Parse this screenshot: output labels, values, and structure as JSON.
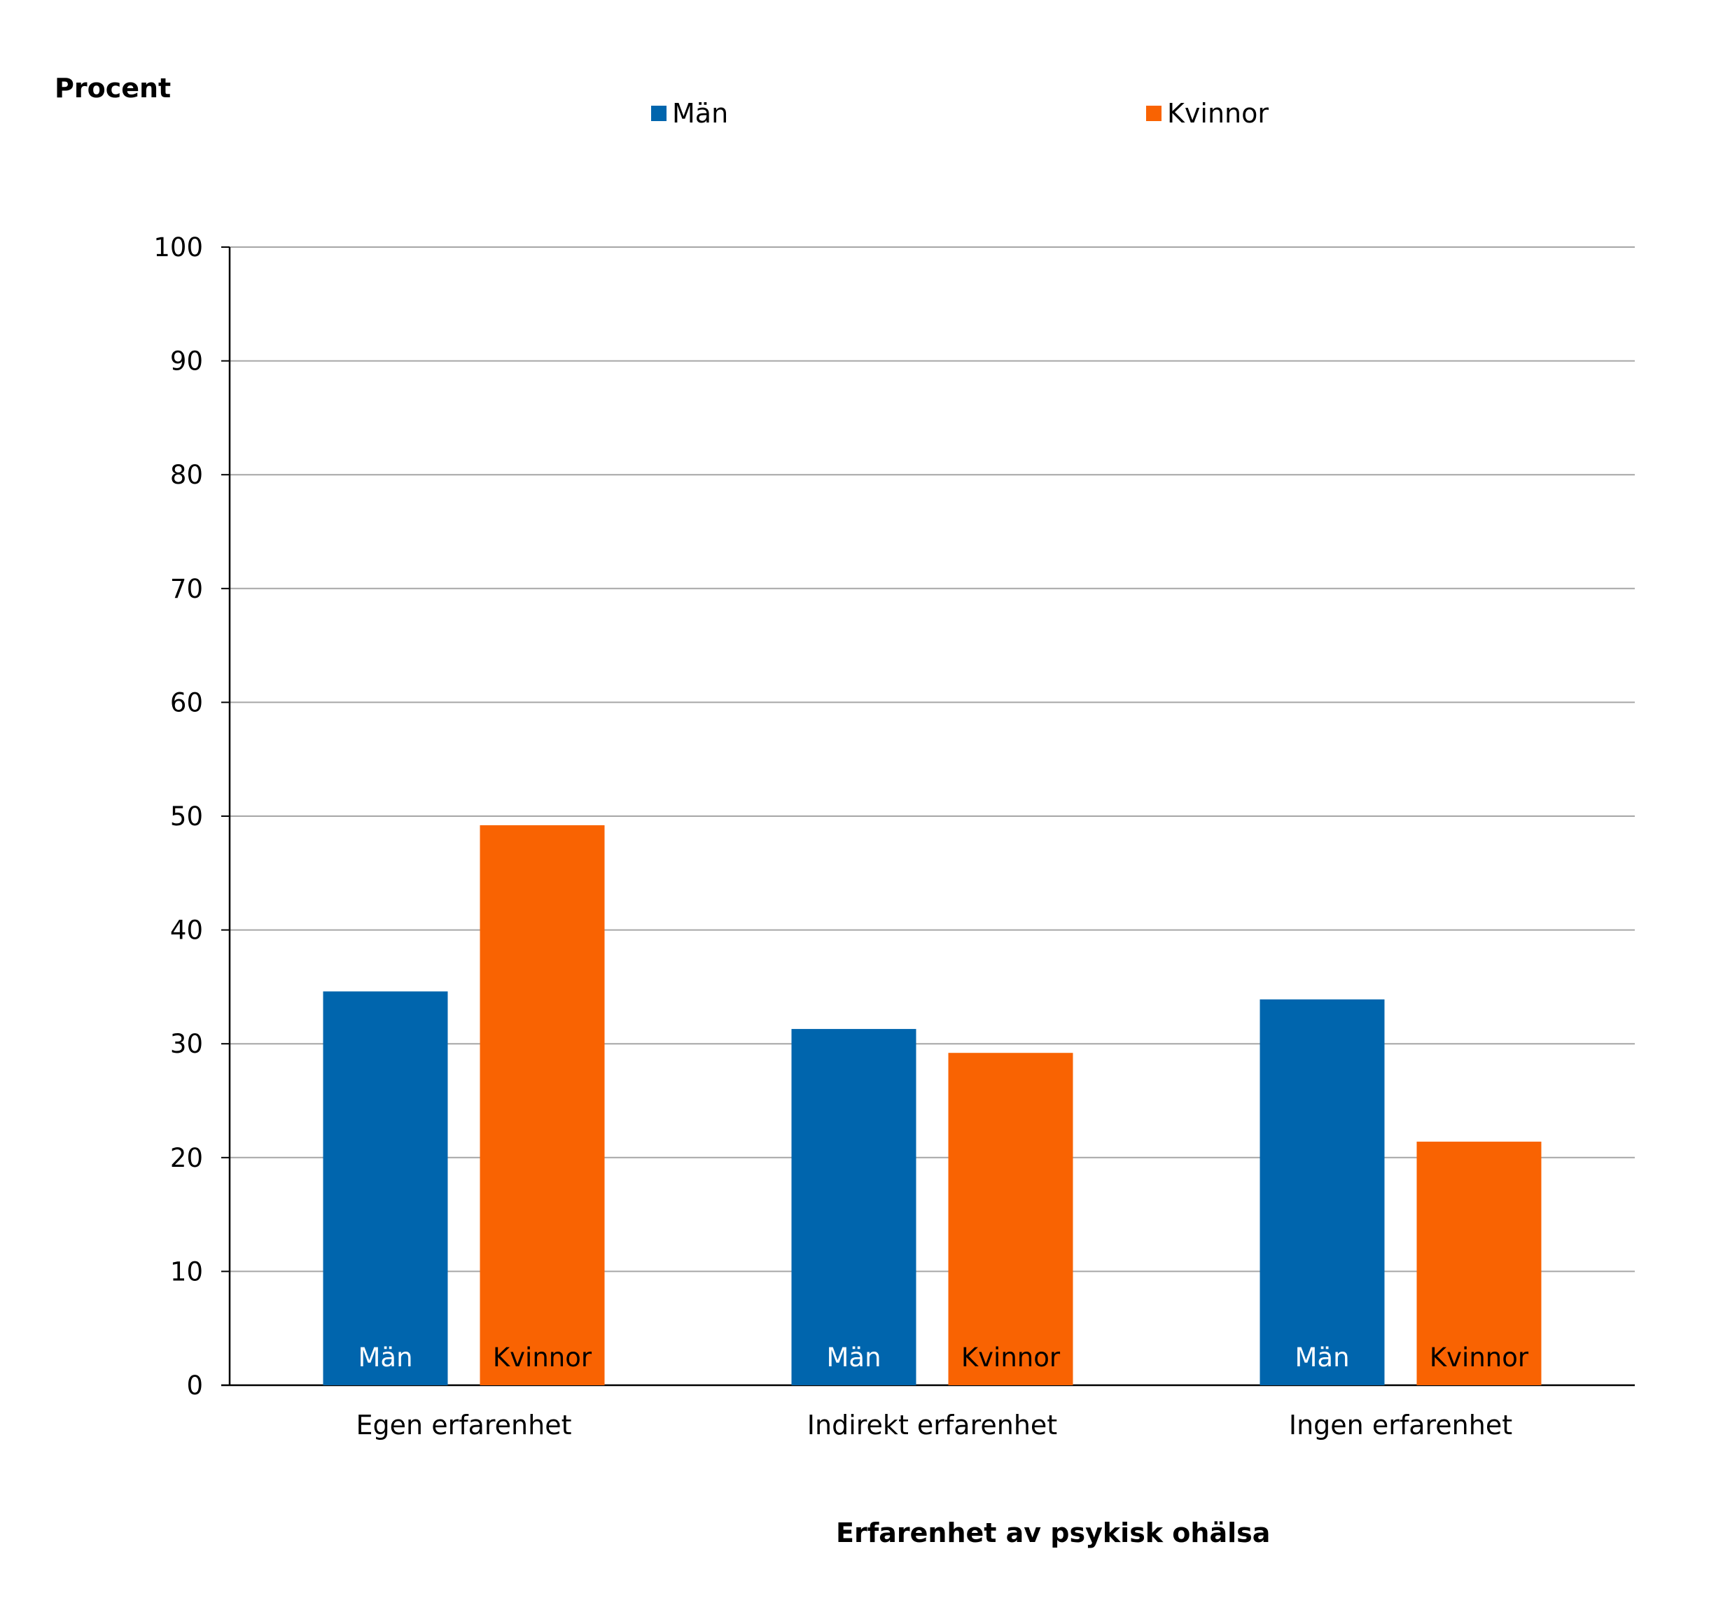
{
  "chart_data": {
    "type": "bar",
    "title": "",
    "ylabel": "Procent",
    "xlabel": "Erfarenhet av psykisk ohälsa",
    "ylim": [
      0,
      100
    ],
    "yticks": [
      0,
      10,
      20,
      30,
      40,
      50,
      60,
      70,
      80,
      90,
      100
    ],
    "grid": true,
    "legend_position": "top",
    "categories": [
      "Egen erfarenhet",
      "Indirekt erfarenhet",
      "Ingen erfarenhet"
    ],
    "series": [
      {
        "name": "Män",
        "color": "#0065ad",
        "values": [
          34.6,
          31.3,
          33.9
        ]
      },
      {
        "name": "Kvinnor",
        "color": "#f96302",
        "values": [
          49.2,
          29.2,
          21.4
        ]
      }
    ],
    "bar_labels": [
      "Män",
      "Kvinnor"
    ]
  }
}
